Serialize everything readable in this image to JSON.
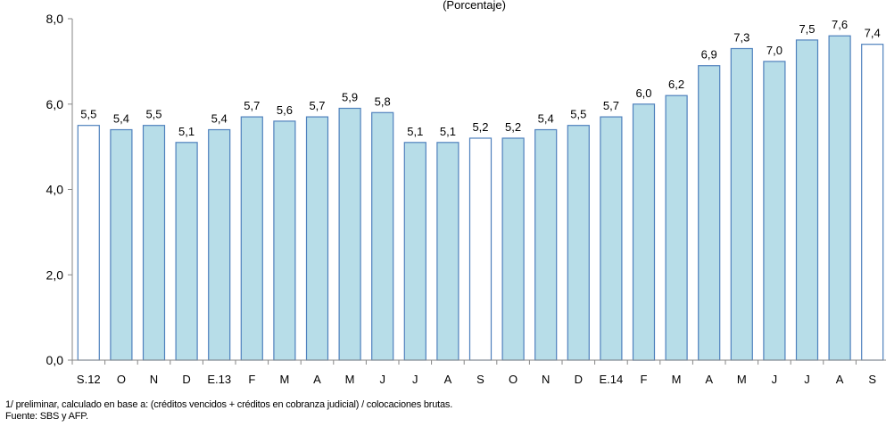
{
  "chart_data": {
    "type": "bar",
    "subtitle": "(Porcentaje)",
    "categories": [
      "S.12",
      "O",
      "N",
      "D",
      "E.13",
      "F",
      "M",
      "A",
      "M",
      "J",
      "J",
      "A",
      "S",
      "O",
      "N",
      "D",
      "E.14",
      "F",
      "M",
      "A",
      "M",
      "J",
      "J",
      "A",
      "S"
    ],
    "values": [
      5.5,
      5.4,
      5.5,
      5.1,
      5.4,
      5.7,
      5.6,
      5.7,
      5.9,
      5.8,
      5.1,
      5.1,
      5.2,
      5.2,
      5.4,
      5.5,
      5.7,
      6.0,
      6.2,
      6.9,
      7.3,
      7.0,
      7.5,
      7.6,
      7.4
    ],
    "value_labels": [
      "5,5",
      "5,4",
      "5,5",
      "5,1",
      "5,4",
      "5,7",
      "5,6",
      "5,7",
      "5,9",
      "5,8",
      "5,1",
      "5,1",
      "5,2",
      "5,2",
      "5,4",
      "5,5",
      "5,7",
      "6,0",
      "6,2",
      "6,9",
      "7,3",
      "7,0",
      "7,5",
      "7,6",
      "7,4"
    ],
    "highlighted": [
      true,
      false,
      false,
      false,
      false,
      false,
      false,
      false,
      false,
      false,
      false,
      false,
      true,
      false,
      false,
      false,
      false,
      false,
      false,
      false,
      false,
      false,
      false,
      false,
      true
    ],
    "ylim": [
      0,
      8
    ],
    "yticks": [
      0,
      2,
      4,
      6,
      8
    ],
    "ytick_labels": [
      "0,0",
      "2,0",
      "4,0",
      "6,0",
      "8,0"
    ],
    "xlabel": "",
    "ylabel": "",
    "grid": false,
    "colors": {
      "bar_fill": "#b7dde8",
      "highlight_fill": "#ffffff",
      "bar_stroke": "#4f81bd",
      "axis": "#868686"
    }
  },
  "notes": {
    "line1": "1/ preliminar, calculado en base a: (créditos vencidos + créditos en cobranza judicial) / colocaciones brutas.",
    "line2": "Fuente: SBS y AFP."
  }
}
